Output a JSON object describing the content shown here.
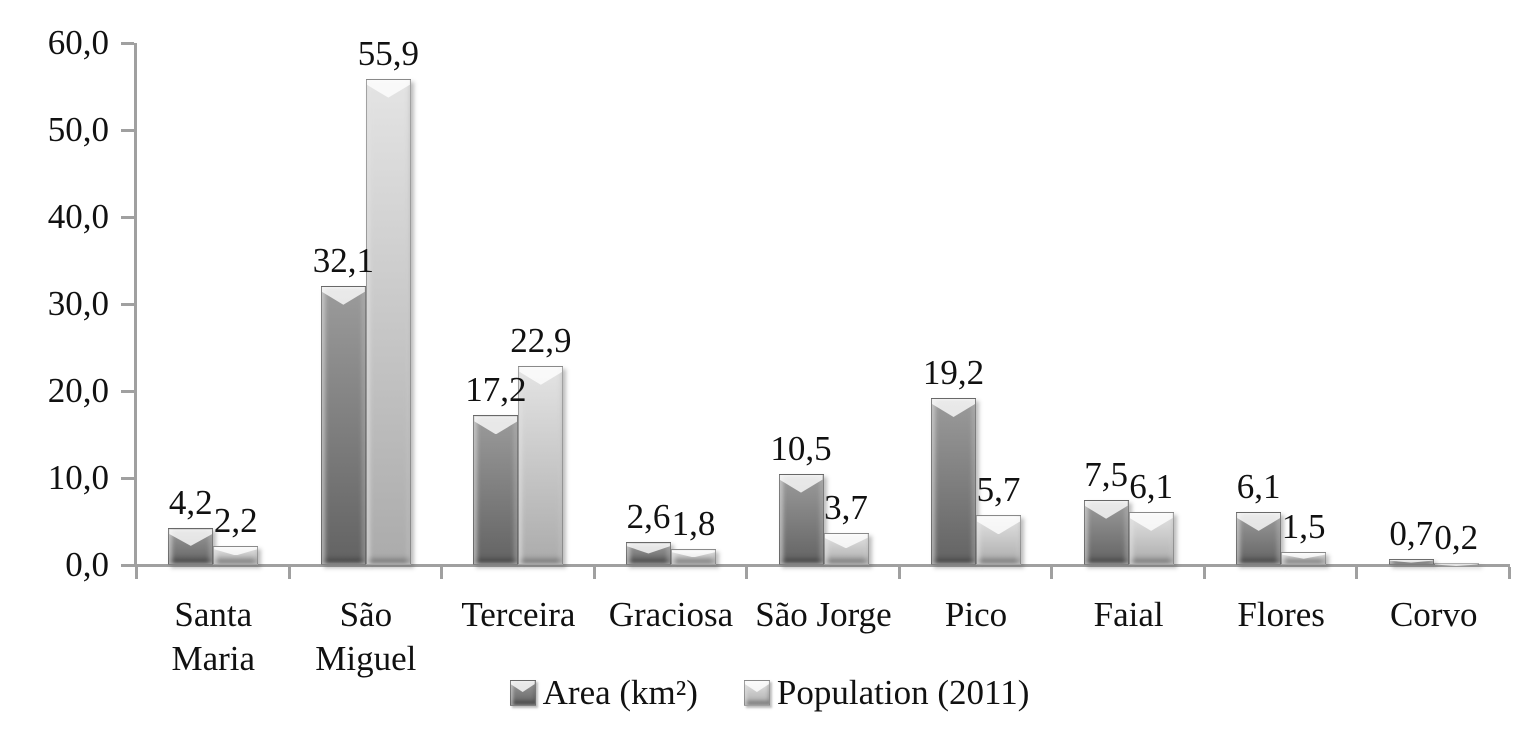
{
  "chart_data": {
    "type": "bar",
    "title": "",
    "categories": [
      "Santa Maria",
      "São Miguel",
      "Terceira",
      "Graciosa",
      "São Jorge",
      "Pico",
      "Faial",
      "Flores",
      "Corvo"
    ],
    "series": [
      {
        "name": "Area (km²)",
        "values": [
          4.2,
          32.1,
          17.2,
          2.6,
          10.5,
          19.2,
          7.5,
          6.1,
          0.7
        ],
        "labels": [
          "4,2",
          "32,1",
          "17,2",
          "2,6",
          "10,5",
          "19,2",
          "7,5",
          "6,1",
          "0,7"
        ],
        "color_top": "#9b9b9b",
        "color_bottom": "#636363"
      },
      {
        "name": "Population (2011)",
        "values": [
          2.2,
          55.9,
          22.9,
          1.8,
          3.7,
          5.7,
          6.1,
          1.5,
          0.2
        ],
        "labels": [
          "2,2",
          "55,9",
          "22,9",
          "1,8",
          "3,7",
          "5,7",
          "6,1",
          "1,5",
          "0,2"
        ],
        "color_top": "#e4e4e4",
        "color_bottom": "#ababab"
      }
    ],
    "y_axis": {
      "min": 0,
      "max": 60,
      "step": 10,
      "tick_labels": [
        "0,0",
        "10,0",
        "20,0",
        "30,0",
        "40,0",
        "50,0",
        "60,0"
      ]
    },
    "x_axis": {
      "label": ""
    },
    "legend": {
      "position": "bottom"
    },
    "grid": "off",
    "number_format": "decimal-comma",
    "colors": {
      "axis": "#a0a0a0",
      "text": "#111111",
      "background": "#ffffff"
    }
  }
}
